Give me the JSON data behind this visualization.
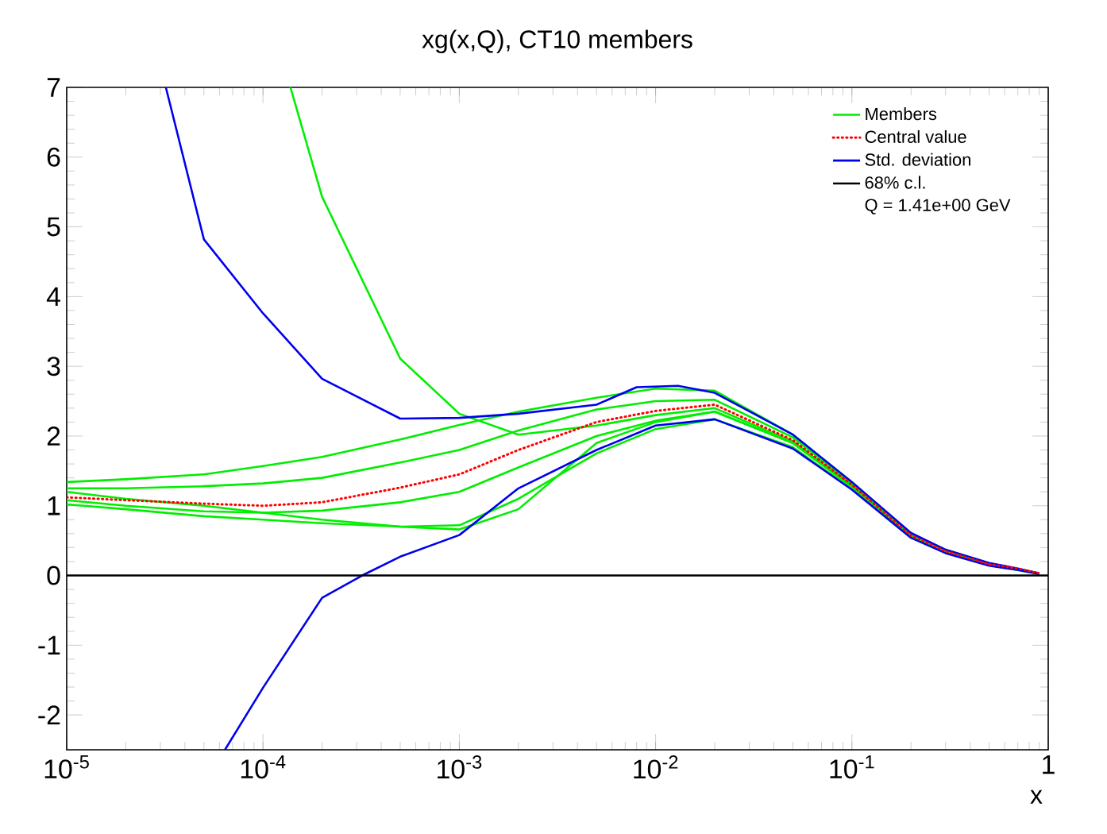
{
  "chart_data": {
    "type": "line",
    "title": "xg(x,Q), CT10 members",
    "xlabel": "x",
    "log": "x",
    "xlim": [
      1e-05,
      1
    ],
    "ylim": [
      -2.5,
      7
    ],
    "xticks": [
      {
        "value": 1e-05,
        "label": "10$^{-5}$"
      },
      {
        "value": 0.0001,
        "label": "10$^{-4}$"
      },
      {
        "value": 0.001,
        "label": "10$^{-3}$"
      },
      {
        "value": 0.01,
        "label": "10$^{-2}$"
      },
      {
        "value": 0.1,
        "label": "10$^{-1}$"
      },
      1
    ],
    "yticks": [
      -2,
      -1,
      0,
      1,
      2,
      3,
      4,
      5,
      6,
      7
    ],
    "grid": false,
    "legend": "top right",
    "marker": "none",
    "annotations": [
      "Q = 1.41e+00 GeV"
    ],
    "series": [
      {
        "name": "Members",
        "color": "#00ee00",
        "line_style": "solid",
        "x": [
          1e-05,
          2e-05,
          5e-05,
          0.0001,
          0.0002,
          0.0005,
          0.001,
          0.002,
          0.005,
          0.01,
          0.02,
          0.05,
          0.1,
          0.2,
          0.3,
          0.5,
          0.7,
          0.9
        ],
        "values": [
          1.34,
          1.38,
          1.45,
          1.57,
          1.7,
          1.95,
          2.16,
          2.35,
          2.55,
          2.68,
          2.65,
          2.02,
          1.34,
          0.6,
          0.37,
          0.17,
          null,
          0.03
        ]
      },
      {
        "color": "#00ee00",
        "line_style": "solid",
        "x": [
          1e-05,
          2e-05,
          5e-05,
          0.0001,
          0.0002,
          0.0005,
          0.001,
          0.002,
          0.005,
          0.01,
          0.02,
          0.05,
          0.1,
          0.2,
          0.3,
          0.5,
          0.7,
          0.9
        ],
        "values": [
          1.25,
          1.25,
          1.28,
          1.32,
          1.4,
          1.62,
          1.8,
          2.08,
          2.38,
          2.5,
          2.52,
          1.98,
          1.32,
          0.58,
          0.36,
          0.16,
          null,
          0.03
        ]
      },
      {
        "color": "#00ee00",
        "line_style": "solid",
        "x": [
          1e-05,
          2e-05,
          5e-05,
          0.0001,
          0.0002,
          0.0005,
          0.001,
          0.002,
          0.005,
          0.01,
          0.02,
          0.05,
          0.1,
          0.2,
          0.3,
          0.5,
          0.7,
          0.9
        ],
        "values": [
          1.08,
          1.0,
          0.92,
          0.9,
          0.93,
          1.05,
          1.2,
          1.55,
          2.0,
          2.22,
          2.35,
          1.9,
          1.28,
          0.56,
          0.34,
          0.15,
          null,
          0.03
        ]
      },
      {
        "color": "#00ee00",
        "line_style": "solid",
        "x": [
          1e-05,
          2e-05,
          5e-05,
          0.0001,
          0.0002,
          0.0005,
          0.001,
          0.002,
          0.005,
          0.01,
          0.02,
          0.05,
          0.1,
          0.2,
          0.3,
          0.5,
          0.7,
          0.9
        ],
        "values": [
          1.02,
          0.95,
          0.85,
          0.8,
          0.75,
          0.7,
          0.72,
          1.1,
          1.75,
          2.1,
          2.24,
          1.84,
          1.24,
          0.55,
          0.33,
          0.15,
          null,
          0.02
        ]
      },
      {
        "color": "#00ee00",
        "line_style": "solid",
        "x": [
          1e-05,
          2e-05,
          5e-05,
          0.0001,
          0.0002,
          0.0005,
          0.001,
          0.002,
          0.005,
          0.01,
          0.02,
          0.05,
          0.1,
          0.2,
          0.3,
          0.5,
          0.7,
          0.9
        ],
        "values": [
          1.2,
          1.1,
          1.0,
          0.9,
          0.8,
          0.7,
          0.66,
          0.95,
          1.9,
          2.2,
          2.35,
          1.9,
          1.27,
          0.56,
          0.34,
          0.15,
          null,
          0.03
        ]
      },
      {
        "color": "#00ee00",
        "line_style": "solid",
        "x": [
          0.000138,
          0.0002,
          0.0005,
          0.001,
          0.002,
          0.005,
          0.01,
          0.02,
          0.05,
          0.1,
          0.2,
          0.3,
          0.5,
          0.7,
          0.9
        ],
        "values": [
          7,
          5.43,
          3.11,
          2.32,
          2.02,
          2.15,
          2.3,
          2.4,
          1.92,
          1.29,
          0.56,
          0.34,
          0.16,
          null,
          0.03
        ]
      },
      {
        "name": "Central value",
        "color": "#ff0000",
        "line_style": "dotted",
        "x": [
          1e-05,
          2e-05,
          5e-05,
          0.0001,
          0.0002,
          0.0005,
          0.001,
          0.002,
          0.005,
          0.01,
          0.02,
          0.05,
          0.1,
          0.2,
          0.3,
          0.5,
          0.7,
          0.9
        ],
        "values": [
          1.12,
          1.08,
          1.03,
          1.0,
          1.05,
          1.26,
          1.45,
          1.8,
          2.2,
          2.36,
          2.45,
          1.94,
          1.3,
          0.57,
          0.35,
          0.16,
          0.1,
          0.03
        ]
      },
      {
        "name": "Std. deviation",
        "color": "#0000ee",
        "line_style": "solid",
        "x": [
          3.2e-05,
          5e-05,
          0.0001,
          0.0002,
          0.0005,
          0.001,
          0.002,
          0.005,
          0.008,
          0.013,
          0.02,
          0.05,
          0.1,
          0.2,
          0.3,
          0.5,
          0.7,
          0.9
        ],
        "values": [
          7,
          4.82,
          3.76,
          2.82,
          2.25,
          2.26,
          2.32,
          2.45,
          2.7,
          2.72,
          2.62,
          2.02,
          1.34,
          0.61,
          0.37,
          0.18,
          0.1,
          0.03
        ]
      },
      {
        "color": "#0000ee",
        "line_style": "solid",
        "x": [
          6.4e-05,
          0.0001,
          0.0002,
          0.00032,
          0.0005,
          0.001,
          0.002,
          0.005,
          0.01,
          0.02,
          0.05,
          0.1,
          0.2,
          0.3,
          0.5,
          0.7,
          0.9
        ],
        "values": [
          -2.5,
          -1.61,
          -0.32,
          0,
          0.27,
          0.58,
          1.25,
          1.8,
          2.15,
          2.24,
          1.82,
          1.23,
          0.54,
          0.32,
          0.14,
          0.08,
          0.02
        ]
      },
      {
        "name": "68% c.l.",
        "color": "#000000",
        "line_style": "solid",
        "x": [
          1e-05,
          1
        ],
        "values": [
          0,
          0
        ]
      }
    ]
  }
}
